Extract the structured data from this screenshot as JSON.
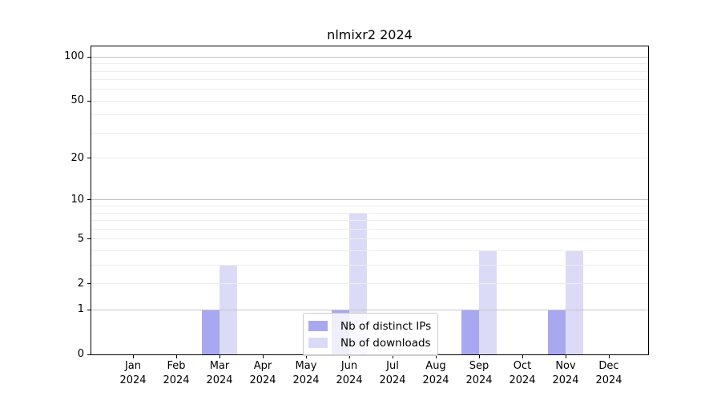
{
  "figure": {
    "background": "#ffffff"
  },
  "chart_data": {
    "type": "bar",
    "title": "nlmixr2 2024",
    "categories": [
      "Jan 2024",
      "Feb 2024",
      "Mar 2024",
      "Apr 2024",
      "May 2024",
      "Jun 2024",
      "Jul 2024",
      "Aug 2024",
      "Sep 2024",
      "Oct 2024",
      "Nov 2024",
      "Dec 2024"
    ],
    "series": [
      {
        "name": "Nb of distinct IPs",
        "color": "#a8a8f0",
        "values": [
          0,
          0,
          1,
          0,
          0,
          1,
          0,
          0,
          1,
          0,
          1,
          0
        ]
      },
      {
        "name": "Nb of downloads",
        "color": "#dbdbf8",
        "values": [
          0,
          0,
          3,
          0,
          0,
          8,
          0,
          0,
          4,
          0,
          4,
          0
        ]
      }
    ],
    "xlabel": "",
    "ylabel": "",
    "yscale": "log1p",
    "ylim": [
      0,
      118
    ],
    "y_major_ticks": [
      0,
      1,
      2,
      5,
      10,
      20,
      50,
      100
    ],
    "y_minor_ticks": [
      3,
      4,
      6,
      7,
      8,
      9,
      30,
      40,
      60,
      70,
      80,
      90
    ],
    "y_decade_lines": [
      1,
      10,
      100
    ],
    "grid": true,
    "legend_position": "lower center",
    "colors": {
      "major_gridline": "#c3c3c3",
      "minor_gridline": "#ededed",
      "frame": "#000000",
      "text": "#000000"
    }
  }
}
